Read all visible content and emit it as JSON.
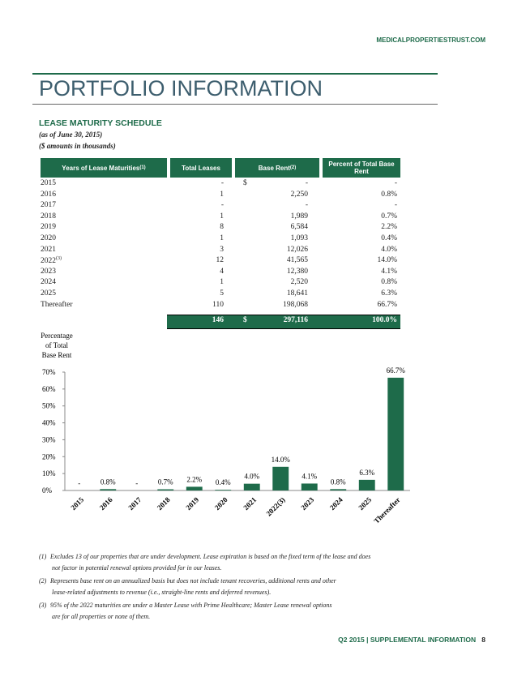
{
  "header": {
    "url": "MEDICALPROPERTIESTRUST.COM",
    "title": "PORTFOLIO INFORMATION"
  },
  "section": {
    "title": "LEASE MATURITY SCHEDULE",
    "notes": [
      "(as of June 30, 2015)",
      "($ amounts in thousands)"
    ]
  },
  "table": {
    "headers": [
      {
        "text": "Years of Lease Maturities",
        "sup": "(1)"
      },
      {
        "text": "Total Leases"
      },
      {
        "text": "Base Rent",
        "sup": "(2)"
      },
      {
        "text": "Percent of Total Base Rent"
      }
    ],
    "rows": [
      {
        "year": "2015",
        "leases": "-",
        "currency": "$",
        "rent": "-",
        "pct": "-"
      },
      {
        "year": "2016",
        "leases": "1",
        "rent": "2,250",
        "pct": "0.8%"
      },
      {
        "year": "2017",
        "leases": "-",
        "rent": "-",
        "pct": "-"
      },
      {
        "year": "2018",
        "leases": "1",
        "rent": "1,989",
        "pct": "0.7%"
      },
      {
        "year": "2019",
        "leases": "8",
        "rent": "6,584",
        "pct": "2.2%"
      },
      {
        "year": "2020",
        "leases": "1",
        "rent": "1,093",
        "pct": "0.4%"
      },
      {
        "year": "2021",
        "leases": "3",
        "rent": "12,026",
        "pct": "4.0%"
      },
      {
        "year": "2022",
        "sup": "(3)",
        "leases": "12",
        "rent": "41,565",
        "pct": "14.0%"
      },
      {
        "year": "2023",
        "leases": "4",
        "rent": "12,380",
        "pct": "4.1%"
      },
      {
        "year": "2024",
        "leases": "1",
        "rent": "2,520",
        "pct": "0.8%"
      },
      {
        "year": "2025",
        "leases": "5",
        "rent": "18,641",
        "pct": "6.3%"
      },
      {
        "year": "Thereafter",
        "leases": "110",
        "rent": "198,068",
        "pct": "66.7%"
      }
    ],
    "total": {
      "leases": "146",
      "currency": "$",
      "rent": "297,116",
      "pct": "100.0%"
    }
  },
  "chart_data": {
    "type": "bar",
    "y_label": [
      "Percentage",
      "of Total",
      "Base Rent"
    ],
    "categories": [
      "2015",
      "2016",
      "2017",
      "2018",
      "2019",
      "2020",
      "2021",
      "2022(3)",
      "2023",
      "2024",
      "2025",
      "Thereafter"
    ],
    "values": [
      0,
      0.8,
      0,
      0.7,
      2.2,
      0.4,
      4.0,
      14.0,
      4.1,
      0.8,
      6.3,
      66.7
    ],
    "value_labels": [
      "-",
      "0.8%",
      "-",
      "0.7%",
      "2.2%",
      "0.4%",
      "4.0%",
      "14.0%",
      "4.1%",
      "0.8%",
      "6.3%",
      "66.7%"
    ],
    "color": "#1e6b4a",
    "ylim": [
      0,
      70
    ],
    "yticks": [
      {
        "value": 0,
        "label": "0%"
      },
      {
        "value": 10,
        "label": "10%"
      },
      {
        "value": 20,
        "label": "20%"
      },
      {
        "value": 30,
        "label": "30%"
      },
      {
        "value": 40,
        "label": "40%"
      },
      {
        "value": 50,
        "label": "50%"
      },
      {
        "value": 60,
        "label": "60%"
      },
      {
        "value": 70,
        "label": "70%"
      }
    ]
  },
  "footnotes": [
    {
      "num": "(1)",
      "lines": [
        "Excludes 13 of our properties that are under development.  Lease expiration is based on the fixed term of the lease and does",
        "not factor in potential renewal options provided for in our leases."
      ]
    },
    {
      "num": "(2)",
      "lines": [
        "Represents base rent on an annualized basis but does not include tenant recoveries, additional rents and other",
        "lease-related adjustments to revenue (i.e., straight-line rents and deferred revenues)."
      ]
    },
    {
      "num": "(3)",
      "lines": [
        "95% of the 2022 maturities are under a Master Lease with Prime Healthcare; Master Lease renewal options",
        "are for all properties or none of them."
      ]
    }
  ],
  "footer": {
    "text": "Q2 2015 | SUPPLEMENTAL INFORMATION",
    "page": "8"
  }
}
